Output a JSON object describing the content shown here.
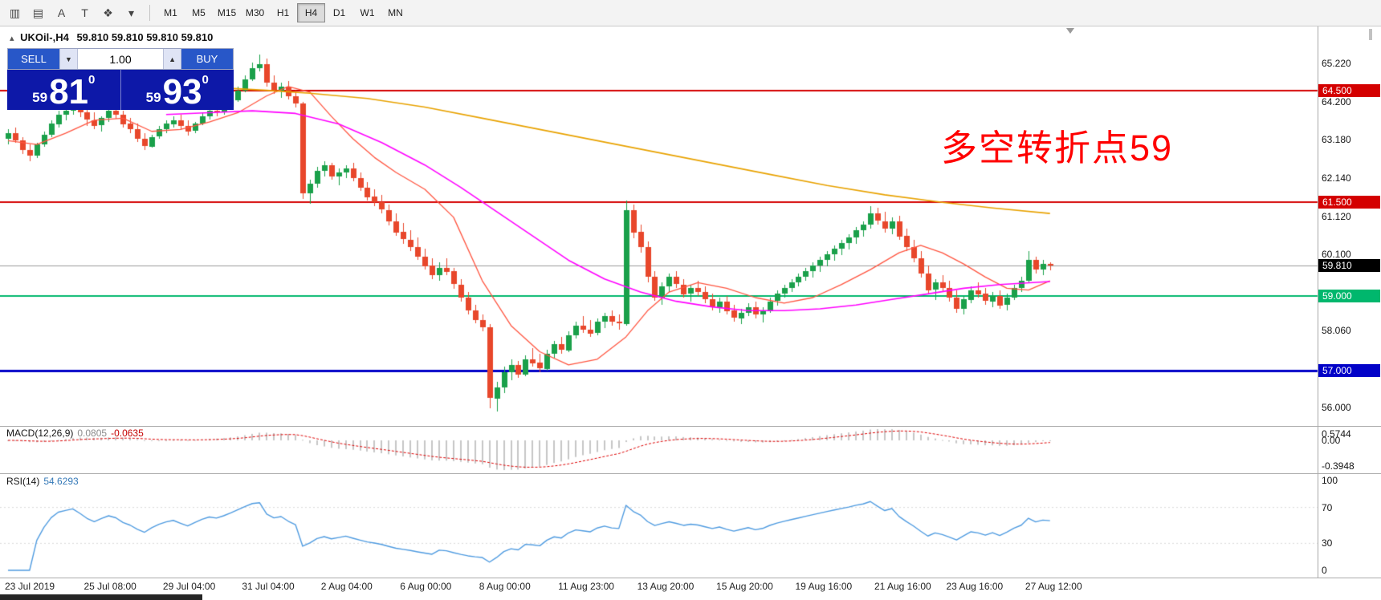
{
  "toolbar": {
    "icons": [
      {
        "name": "chart-candles-icon",
        "glyph": "▥"
      },
      {
        "name": "chart-grid-icon",
        "glyph": "▤"
      },
      {
        "name": "text-annotation-icon",
        "glyph": "A"
      },
      {
        "name": "text-box-icon",
        "glyph": "T"
      },
      {
        "name": "indicators-icon",
        "glyph": "❖"
      },
      {
        "name": "dropdown-caret-icon",
        "glyph": "▾"
      }
    ],
    "timeframes": [
      "M1",
      "M5",
      "M15",
      "M30",
      "H1",
      "H4",
      "D1",
      "W1",
      "MN"
    ],
    "active": "H4"
  },
  "header": {
    "collapse_icon": "▴",
    "symbol": "UKOil-,H4",
    "ohlc": "59.810 59.810 59.810 59.810"
  },
  "trade_panel": {
    "sell_label": "SELL",
    "buy_label": "BUY",
    "volume": "1.00",
    "caret_down": "▼",
    "caret_up": "▲",
    "sell_small": "59",
    "sell_big": "81",
    "buy_small": "59",
    "buy_big": "93",
    "price_sup": "0"
  },
  "annotation": {
    "text": "多空转折点59",
    "color": "#ff0000"
  },
  "colors": {
    "up": "#1aa04a",
    "down": "#e8472b",
    "ma_slow": "#e8a200",
    "ma_mid": "#ff00ff",
    "ma_fast": "#ff5540",
    "macd_hist": "#c6c6c6",
    "macd_signal": "#dd0000",
    "rsi": "#4f9be0",
    "current_line": "#9b9b9b"
  },
  "main_chart": {
    "price_ticks": [
      {
        "text": "65.220",
        "value": 65.22
      },
      {
        "text": "64.200",
        "value": 64.2
      },
      {
        "text": "63.180",
        "value": 63.18
      },
      {
        "text": "62.140",
        "value": 62.14
      },
      {
        "text": "61.120",
        "value": 61.12
      },
      {
        "text": "60.100",
        "value": 60.1
      },
      {
        "text": "58.060",
        "value": 58.06
      },
      {
        "text": "56.000",
        "value": 56.0
      }
    ],
    "hlines": [
      {
        "price": 64.5,
        "label": "64.500",
        "color": "#d40000",
        "width": 2
      },
      {
        "price": 61.5,
        "label": "61.500",
        "color": "#d40000",
        "width": 2
      },
      {
        "price": 59.0,
        "label": "59.000",
        "color": "#00b76d",
        "width": 2
      },
      {
        "price": 57.0,
        "label": "57.000",
        "color": "#0202c8",
        "width": 3
      }
    ],
    "current": {
      "price": 59.81,
      "label": "59.810",
      "badge": "#000000"
    },
    "candles": [
      [
        63.2,
        63.45,
        63.05,
        63.35
      ],
      [
        63.35,
        63.5,
        63.1,
        63.15
      ],
      [
        63.15,
        63.25,
        62.8,
        62.9
      ],
      [
        62.9,
        63.05,
        62.6,
        62.75
      ],
      [
        62.75,
        63.1,
        62.7,
        63.05
      ],
      [
        63.05,
        63.4,
        63.0,
        63.3
      ],
      [
        63.3,
        63.7,
        63.25,
        63.6
      ],
      [
        63.6,
        63.95,
        63.5,
        63.85
      ],
      [
        63.85,
        64.1,
        63.7,
        63.95
      ],
      [
        63.95,
        64.25,
        63.85,
        64.05
      ],
      [
        64.05,
        64.2,
        63.8,
        63.9
      ],
      [
        63.9,
        64.0,
        63.55,
        63.7
      ],
      [
        63.7,
        63.9,
        63.45,
        63.55
      ],
      [
        63.55,
        63.8,
        63.4,
        63.75
      ],
      [
        63.75,
        64.05,
        63.65,
        63.95
      ],
      [
        63.95,
        64.15,
        63.75,
        63.85
      ],
      [
        63.85,
        63.95,
        63.5,
        63.6
      ],
      [
        63.6,
        63.75,
        63.35,
        63.45
      ],
      [
        63.45,
        63.6,
        63.1,
        63.2
      ],
      [
        63.2,
        63.35,
        62.9,
        63.0
      ],
      [
        63.0,
        63.3,
        62.95,
        63.25
      ],
      [
        63.25,
        63.55,
        63.2,
        63.45
      ],
      [
        63.45,
        63.7,
        63.35,
        63.6
      ],
      [
        63.6,
        63.8,
        63.5,
        63.7
      ],
      [
        63.7,
        63.85,
        63.45,
        63.55
      ],
      [
        63.55,
        63.7,
        63.3,
        63.4
      ],
      [
        63.4,
        63.65,
        63.35,
        63.6
      ],
      [
        63.6,
        63.9,
        63.55,
        63.8
      ],
      [
        63.8,
        64.05,
        63.7,
        63.95
      ],
      [
        63.95,
        64.1,
        63.8,
        63.9
      ],
      [
        63.9,
        64.15,
        63.85,
        64.05
      ],
      [
        64.05,
        64.35,
        64.0,
        64.25
      ],
      [
        64.25,
        64.6,
        64.2,
        64.5
      ],
      [
        64.5,
        64.9,
        64.45,
        64.8
      ],
      [
        64.8,
        65.25,
        64.75,
        65.1
      ],
      [
        65.1,
        65.45,
        65.0,
        65.2
      ],
      [
        65.2,
        65.35,
        64.6,
        64.7
      ],
      [
        64.7,
        64.9,
        64.4,
        64.5
      ],
      [
        64.5,
        64.7,
        64.3,
        64.6
      ],
      [
        64.6,
        64.75,
        64.25,
        64.35
      ],
      [
        64.35,
        64.5,
        64.05,
        64.15
      ],
      [
        64.15,
        64.2,
        61.6,
        61.75
      ],
      [
        61.75,
        62.1,
        61.45,
        62.0
      ],
      [
        62.0,
        62.45,
        61.9,
        62.35
      ],
      [
        62.35,
        62.6,
        62.2,
        62.5
      ],
      [
        62.5,
        62.55,
        62.1,
        62.2
      ],
      [
        62.2,
        62.4,
        61.95,
        62.3
      ],
      [
        62.3,
        62.5,
        62.15,
        62.4
      ],
      [
        62.4,
        62.55,
        62.05,
        62.15
      ],
      [
        62.15,
        62.3,
        61.8,
        61.9
      ],
      [
        61.9,
        62.05,
        61.55,
        61.65
      ],
      [
        61.65,
        61.85,
        61.4,
        61.5
      ],
      [
        61.5,
        61.7,
        61.2,
        61.3
      ],
      [
        61.3,
        61.45,
        60.9,
        61.0
      ],
      [
        61.0,
        61.2,
        60.6,
        60.7
      ],
      [
        60.7,
        60.95,
        60.4,
        60.5
      ],
      [
        60.5,
        60.75,
        60.2,
        60.3
      ],
      [
        60.3,
        60.55,
        59.95,
        60.05
      ],
      [
        60.05,
        60.25,
        59.7,
        59.8
      ],
      [
        59.8,
        60.0,
        59.45,
        59.55
      ],
      [
        59.55,
        59.9,
        59.4,
        59.75
      ],
      [
        59.75,
        60.0,
        59.55,
        59.65
      ],
      [
        59.65,
        59.75,
        59.2,
        59.3
      ],
      [
        59.3,
        59.45,
        58.85,
        58.95
      ],
      [
        58.95,
        59.1,
        58.5,
        58.6
      ],
      [
        58.6,
        58.75,
        58.25,
        58.35
      ],
      [
        58.35,
        58.5,
        58.05,
        58.15
      ],
      [
        58.15,
        58.25,
        56.0,
        56.25
      ],
      [
        56.25,
        56.7,
        55.9,
        56.55
      ],
      [
        56.55,
        57.1,
        56.4,
        56.95
      ],
      [
        56.95,
        57.3,
        56.75,
        57.15
      ],
      [
        57.15,
        57.25,
        56.8,
        56.9
      ],
      [
        56.9,
        57.4,
        56.85,
        57.3
      ],
      [
        57.3,
        57.6,
        57.1,
        57.2
      ],
      [
        57.2,
        57.45,
        56.95,
        57.05
      ],
      [
        57.05,
        57.55,
        57.0,
        57.45
      ],
      [
        57.45,
        57.8,
        57.35,
        57.7
      ],
      [
        57.7,
        57.9,
        57.45,
        57.55
      ],
      [
        57.55,
        58.05,
        57.5,
        57.95
      ],
      [
        57.95,
        58.3,
        57.85,
        58.2
      ],
      [
        58.2,
        58.45,
        58.0,
        58.1
      ],
      [
        58.1,
        58.35,
        57.9,
        58.0
      ],
      [
        58.0,
        58.4,
        57.95,
        58.3
      ],
      [
        58.3,
        58.55,
        58.15,
        58.45
      ],
      [
        58.45,
        58.6,
        58.2,
        58.3
      ],
      [
        58.3,
        58.5,
        58.1,
        58.25
      ],
      [
        58.25,
        61.55,
        58.2,
        61.3
      ],
      [
        61.3,
        61.45,
        60.55,
        60.7
      ],
      [
        60.7,
        60.9,
        60.15,
        60.3
      ],
      [
        60.3,
        60.45,
        59.35,
        59.5
      ],
      [
        59.5,
        59.65,
        58.85,
        58.95
      ],
      [
        58.95,
        59.35,
        58.75,
        59.25
      ],
      [
        59.25,
        59.6,
        59.1,
        59.5
      ],
      [
        59.5,
        59.65,
        59.2,
        59.3
      ],
      [
        59.3,
        59.45,
        58.95,
        59.05
      ],
      [
        59.05,
        59.3,
        58.85,
        59.2
      ],
      [
        59.2,
        59.4,
        59.0,
        59.1
      ],
      [
        59.1,
        59.25,
        58.8,
        58.9
      ],
      [
        58.9,
        59.05,
        58.6,
        58.7
      ],
      [
        58.7,
        58.95,
        58.55,
        58.85
      ],
      [
        58.85,
        59.0,
        58.5,
        58.6
      ],
      [
        58.6,
        58.75,
        58.3,
        58.4
      ],
      [
        58.4,
        58.65,
        58.25,
        58.55
      ],
      [
        58.55,
        58.8,
        58.45,
        58.7
      ],
      [
        58.7,
        58.85,
        58.4,
        58.5
      ],
      [
        58.5,
        58.7,
        58.3,
        58.6
      ],
      [
        58.6,
        58.95,
        58.55,
        58.85
      ],
      [
        58.85,
        59.15,
        58.75,
        59.05
      ],
      [
        59.05,
        59.3,
        58.95,
        59.2
      ],
      [
        59.2,
        59.45,
        59.1,
        59.35
      ],
      [
        59.35,
        59.6,
        59.25,
        59.5
      ],
      [
        59.5,
        59.75,
        59.4,
        59.65
      ],
      [
        59.65,
        59.9,
        59.5,
        59.8
      ],
      [
        59.8,
        60.05,
        59.65,
        59.95
      ],
      [
        59.95,
        60.2,
        59.8,
        60.1
      ],
      [
        60.1,
        60.35,
        59.95,
        60.25
      ],
      [
        60.25,
        60.5,
        60.1,
        60.4
      ],
      [
        60.4,
        60.65,
        60.25,
        60.55
      ],
      [
        60.55,
        60.85,
        60.4,
        60.75
      ],
      [
        60.75,
        61.0,
        60.6,
        60.9
      ],
      [
        60.9,
        61.4,
        60.8,
        61.2
      ],
      [
        61.2,
        61.35,
        60.9,
        61.0
      ],
      [
        61.0,
        61.25,
        60.7,
        60.8
      ],
      [
        60.8,
        61.1,
        60.65,
        61.0
      ],
      [
        61.0,
        61.15,
        60.5,
        60.6
      ],
      [
        60.6,
        60.8,
        60.2,
        60.3
      ],
      [
        60.3,
        60.5,
        59.9,
        60.0
      ],
      [
        60.0,
        60.2,
        59.5,
        59.6
      ],
      [
        59.6,
        59.8,
        59.05,
        59.15
      ],
      [
        59.15,
        59.45,
        58.9,
        59.35
      ],
      [
        59.35,
        59.55,
        59.1,
        59.2
      ],
      [
        59.2,
        59.4,
        58.85,
        58.95
      ],
      [
        58.95,
        59.15,
        58.55,
        58.65
      ],
      [
        58.65,
        59.0,
        58.5,
        58.9
      ],
      [
        58.9,
        59.25,
        58.8,
        59.15
      ],
      [
        59.15,
        59.35,
        58.95,
        59.05
      ],
      [
        59.05,
        59.2,
        58.75,
        58.85
      ],
      [
        58.85,
        59.1,
        58.7,
        59.0
      ],
      [
        59.0,
        59.15,
        58.65,
        58.75
      ],
      [
        58.75,
        59.05,
        58.6,
        58.95
      ],
      [
        58.95,
        59.3,
        58.9,
        59.2
      ],
      [
        59.2,
        59.5,
        59.1,
        59.4
      ],
      [
        59.4,
        60.2,
        59.35,
        59.95
      ],
      [
        59.95,
        60.05,
        59.6,
        59.7
      ],
      [
        59.7,
        59.95,
        59.55,
        59.85
      ],
      [
        59.85,
        59.9,
        59.68,
        59.81
      ]
    ],
    "ma_slow": [
      [
        31,
        64.55
      ],
      [
        36,
        64.5
      ],
      [
        42,
        64.42
      ],
      [
        50,
        64.28
      ],
      [
        58,
        64.05
      ],
      [
        66,
        63.75
      ],
      [
        74,
        63.45
      ],
      [
        82,
        63.15
      ],
      [
        90,
        62.85
      ],
      [
        98,
        62.55
      ],
      [
        106,
        62.25
      ],
      [
        114,
        61.95
      ],
      [
        122,
        61.7
      ],
      [
        130,
        61.5
      ],
      [
        137,
        61.35
      ],
      [
        145,
        61.2
      ]
    ],
    "ma_mid": [
      [
        22,
        63.85
      ],
      [
        28,
        63.9
      ],
      [
        34,
        63.95
      ],
      [
        40,
        63.88
      ],
      [
        46,
        63.6
      ],
      [
        52,
        63.1
      ],
      [
        58,
        62.5
      ],
      [
        63,
        61.9
      ],
      [
        68,
        61.25
      ],
      [
        73,
        60.6
      ],
      [
        78,
        59.95
      ],
      [
        83,
        59.45
      ],
      [
        88,
        59.1
      ],
      [
        93,
        58.85
      ],
      [
        98,
        58.7
      ],
      [
        103,
        58.6
      ],
      [
        108,
        58.6
      ],
      [
        113,
        58.65
      ],
      [
        118,
        58.75
      ],
      [
        123,
        58.9
      ],
      [
        128,
        59.05
      ],
      [
        133,
        59.2
      ],
      [
        138,
        59.3
      ],
      [
        145,
        59.38
      ]
    ],
    "ma_fast": [
      [
        0,
        63.15
      ],
      [
        4,
        63.05
      ],
      [
        8,
        63.35
      ],
      [
        12,
        63.7
      ],
      [
        16,
        63.75
      ],
      [
        20,
        63.4
      ],
      [
        24,
        63.45
      ],
      [
        28,
        63.65
      ],
      [
        32,
        63.9
      ],
      [
        36,
        64.35
      ],
      [
        39,
        64.6
      ],
      [
        42,
        64.45
      ],
      [
        45,
        63.8
      ],
      [
        48,
        63.2
      ],
      [
        51,
        62.7
      ],
      [
        54,
        62.3
      ],
      [
        58,
        61.85
      ],
      [
        62,
        61.1
      ],
      [
        66,
        59.4
      ],
      [
        70,
        58.2
      ],
      [
        74,
        57.5
      ],
      [
        78,
        57.15
      ],
      [
        82,
        57.3
      ],
      [
        86,
        57.9
      ],
      [
        89,
        58.6
      ],
      [
        92,
        59.1
      ],
      [
        96,
        59.35
      ],
      [
        100,
        59.2
      ],
      [
        104,
        58.95
      ],
      [
        108,
        58.8
      ],
      [
        112,
        58.95
      ],
      [
        116,
        59.3
      ],
      [
        120,
        59.7
      ],
      [
        124,
        60.15
      ],
      [
        127,
        60.35
      ],
      [
        130,
        60.15
      ],
      [
        133,
        59.85
      ],
      [
        136,
        59.5
      ],
      [
        139,
        59.2
      ],
      [
        142,
        59.15
      ],
      [
        145,
        59.4
      ]
    ]
  },
  "panels": {
    "macd": {
      "title": "MACD(12,26,9)",
      "value_main": "0.0805",
      "value_signal": "-0.0635",
      "axis": [
        "0.5744",
        "0.00",
        "-0.3948"
      ]
    },
    "rsi": {
      "title": "RSI(14)",
      "value": "54.6293",
      "axis": [
        {
          "text": "100",
          "value": 100
        },
        {
          "text": "70",
          "value": 70
        },
        {
          "text": "30",
          "value": 30
        },
        {
          "text": "0",
          "value": 0
        }
      ],
      "levels": [
        70,
        30
      ]
    }
  },
  "time_axis": {
    "labels": [
      {
        "text": "23 Jul 2019",
        "bar": 0
      },
      {
        "text": "25 Jul 08:00",
        "bar": 11
      },
      {
        "text": "29 Jul 04:00",
        "bar": 22
      },
      {
        "text": "31 Jul 04:00",
        "bar": 33
      },
      {
        "text": "2 Aug 04:00",
        "bar": 44
      },
      {
        "text": "6 Aug 00:00",
        "bar": 55
      },
      {
        "text": "8 Aug 00:00",
        "bar": 66
      },
      {
        "text": "11 Aug 23:00",
        "bar": 77
      },
      {
        "text": "13 Aug 20:00",
        "bar": 88
      },
      {
        "text": "15 Aug 20:00",
        "bar": 99
      },
      {
        "text": "19 Aug 16:00",
        "bar": 110
      },
      {
        "text": "21 Aug 16:00",
        "bar": 121
      },
      {
        "text": "23 Aug 16:00",
        "bar": 131
      },
      {
        "text": "27 Aug 12:00",
        "bar": 142
      }
    ]
  }
}
